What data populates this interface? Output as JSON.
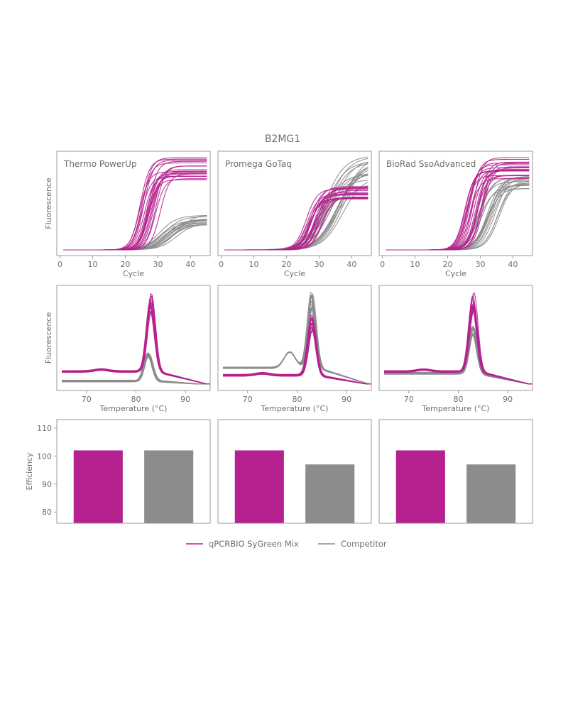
{
  "title": "B2MG1",
  "colors": {
    "sygreen": "#b5218e",
    "competitor": "#8c8c8c",
    "frame": "#9a9a9a",
    "text": "#6e6e6e"
  },
  "legend": [
    {
      "label": "qPCRBIO SyGreen Mix",
      "color": "#b5218e"
    },
    {
      "label": "Competitor",
      "color": "#8c8c8c"
    }
  ],
  "chart_data": [
    {
      "type": "line",
      "panel": "Thermo PowerUp",
      "row": "amplification",
      "xlabel": "Cycle",
      "ylabel": "Fluorescence",
      "xlim": [
        -1,
        46
      ],
      "ylim": [
        0,
        1
      ],
      "xticks": [
        0,
        10,
        20,
        30,
        40
      ],
      "series": [
        {
          "name": "qPCRBIO SyGreen Mix",
          "curves": 20,
          "threshold_cycle_range": [
            24,
            31
          ],
          "plateau_range": [
            0.72,
            0.98
          ],
          "slope": 0.7
        },
        {
          "name": "Competitor",
          "curves": 16,
          "threshold_cycle_range": [
            30,
            36
          ],
          "plateau_range": [
            0.26,
            0.38
          ],
          "slope": 0.38
        }
      ]
    },
    {
      "type": "line",
      "panel": "Promega GoTaq",
      "row": "amplification",
      "xlabel": "Cycle",
      "ylabel": "",
      "xlim": [
        -1,
        46
      ],
      "ylim": [
        0,
        1
      ],
      "xticks": [
        0,
        10,
        20,
        30,
        40
      ],
      "series": [
        {
          "name": "qPCRBIO SyGreen Mix",
          "curves": 20,
          "threshold_cycle_range": [
            26,
            32
          ],
          "plateau_range": [
            0.54,
            0.68
          ],
          "slope": 0.6
        },
        {
          "name": "Competitor",
          "curves": 18,
          "threshold_cycle_range": [
            31,
            38
          ],
          "plateau_range": [
            0.7,
            1.0
          ],
          "slope": 0.32
        }
      ]
    },
    {
      "type": "line",
      "panel": "BioRad SsoAdvanced",
      "row": "amplification",
      "xlabel": "Cycle",
      "ylabel": "",
      "xlim": [
        -1,
        46
      ],
      "ylim": [
        0,
        1
      ],
      "xticks": [
        0,
        10,
        20,
        30,
        40
      ],
      "series": [
        {
          "name": "qPCRBIO SyGreen Mix",
          "curves": 20,
          "threshold_cycle_range": [
            25,
            31
          ],
          "plateau_range": [
            0.75,
            0.98
          ],
          "slope": 0.7
        },
        {
          "name": "Competitor",
          "curves": 18,
          "threshold_cycle_range": [
            29,
            36
          ],
          "plateau_range": [
            0.64,
            0.78
          ],
          "slope": 0.5
        }
      ]
    },
    {
      "type": "line",
      "panel": "Thermo PowerUp",
      "row": "melt",
      "xlabel": "Temperature (°C)",
      "ylabel": "Fluorescence",
      "xlim": [
        64,
        95
      ],
      "ylim": [
        0,
        1
      ],
      "xticks": [
        70,
        80,
        90
      ],
      "series": [
        {
          "name": "qPCRBIO SyGreen Mix",
          "curves": 16,
          "peak_temp": 83,
          "peak_height_range": [
            0.76,
            0.98
          ],
          "baseline": 0.14
        },
        {
          "name": "Competitor",
          "curves": 14,
          "peak_temp": 82.5,
          "peak_height_range": [
            0.3,
            0.34
          ],
          "baseline": 0.04
        }
      ]
    },
    {
      "type": "line",
      "panel": "Promega GoTaq",
      "row": "melt",
      "xlabel": "Temperature (°C)",
      "ylabel": "",
      "xlim": [
        64,
        95
      ],
      "ylim": [
        0,
        1
      ],
      "xticks": [
        70,
        80,
        90
      ],
      "series": [
        {
          "name": "qPCRBIO SyGreen Mix",
          "curves": 16,
          "peak_temp": 83,
          "peak_height_range": [
            0.56,
            0.74
          ],
          "baseline": 0.1
        },
        {
          "name": "Competitor",
          "curves": 16,
          "peak_temp": 83,
          "peak_height_range": [
            0.8,
            0.98
          ],
          "baseline": 0.18,
          "shoulder_temp": 78.5,
          "shoulder_height": 0.38
        }
      ]
    },
    {
      "type": "line",
      "panel": "BioRad SsoAdvanced",
      "row": "melt",
      "xlabel": "Temperature (°C)",
      "ylabel": "",
      "xlim": [
        64,
        95
      ],
      "ylim": [
        0,
        1
      ],
      "xticks": [
        70,
        80,
        90
      ],
      "series": [
        {
          "name": "qPCRBIO SyGreen Mix",
          "curves": 16,
          "peak_temp": 83,
          "peak_height_range": [
            0.78,
            0.98
          ],
          "baseline": 0.14
        },
        {
          "name": "Competitor",
          "curves": 14,
          "peak_temp": 83,
          "peak_height_range": [
            0.52,
            0.62
          ],
          "baseline": 0.12
        }
      ]
    },
    {
      "type": "bar",
      "panel": "Thermo PowerUp",
      "row": "efficiency",
      "categories": [
        "qPCRBIO SyGreen Mix",
        "Competitor"
      ],
      "values": [
        102,
        102
      ],
      "ylabel": "Efficiency",
      "ylim": [
        76,
        113
      ],
      "yticks": [
        80,
        90,
        100,
        110
      ]
    },
    {
      "type": "bar",
      "panel": "Promega GoTaq",
      "row": "efficiency",
      "categories": [
        "qPCRBIO SyGreen Mix",
        "Competitor"
      ],
      "values": [
        102,
        97
      ],
      "ylabel": "",
      "ylim": [
        76,
        113
      ],
      "yticks": [
        80,
        90,
        100,
        110
      ]
    },
    {
      "type": "bar",
      "panel": "BioRad SsoAdvanced",
      "row": "efficiency",
      "categories": [
        "qPCRBIO SyGreen Mix",
        "Competitor"
      ],
      "values": [
        102,
        97
      ],
      "ylabel": "",
      "ylim": [
        76,
        113
      ],
      "yticks": [
        80,
        90,
        100,
        110
      ]
    }
  ]
}
